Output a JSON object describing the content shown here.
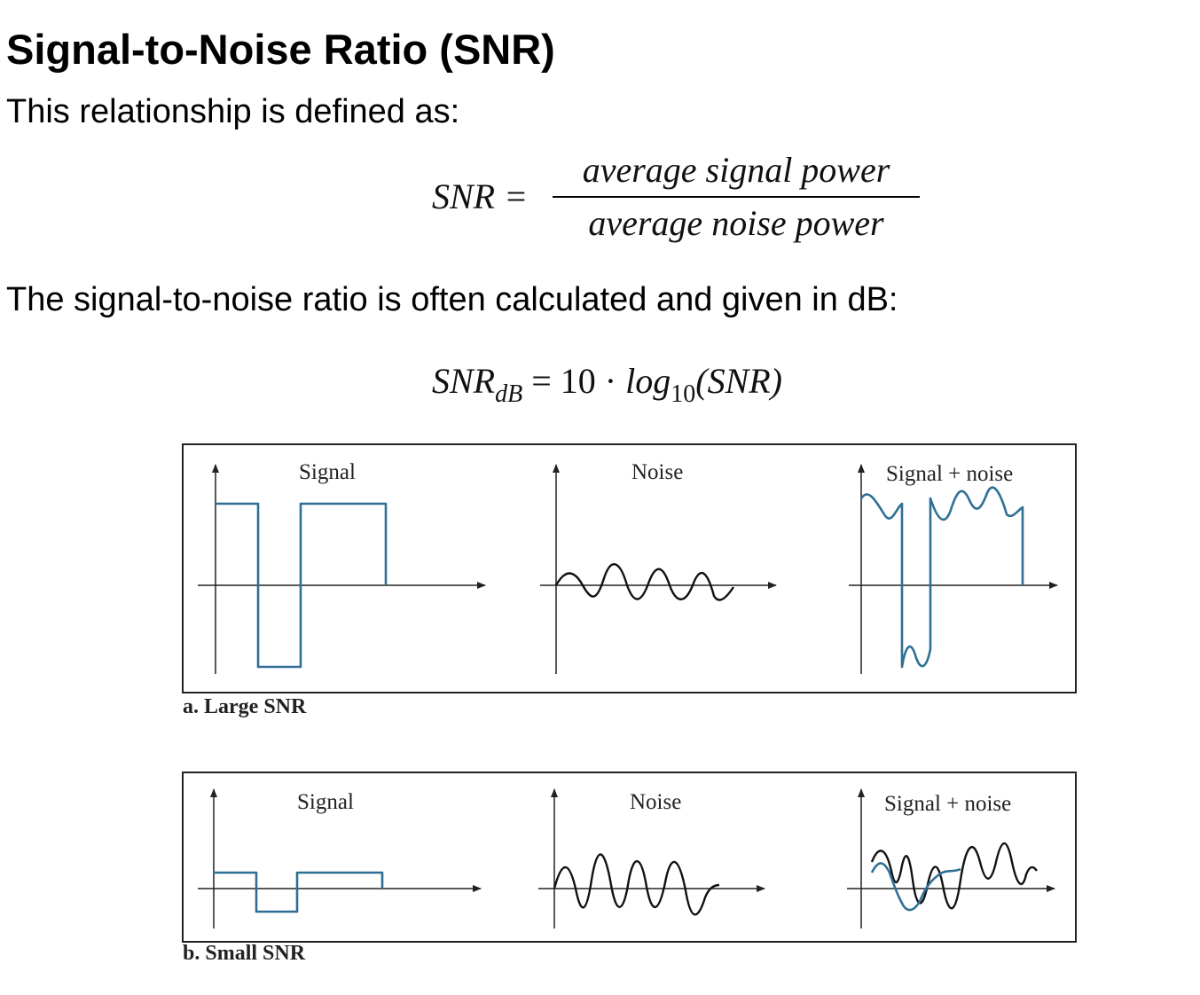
{
  "title": "Signal-to-Noise Ratio (SNR)",
  "intro": "This relationship is defined as:",
  "equation1": {
    "lhs": "SNR =",
    "numerator": "average signal power",
    "denominator": "average noise power"
  },
  "db_intro": "The signal-to-noise ratio is often calculated and given in dB:",
  "equation2": {
    "lhs": "SNR",
    "lhs_sub": "dB",
    "eq": "= 10 · ",
    "fn": "log",
    "fn_sub": "10",
    "arg": "(SNR)"
  },
  "figure": {
    "panel_a": {
      "caption": "a. Large SNR",
      "labels": [
        "Signal",
        "Noise",
        "Signal + noise"
      ]
    },
    "panel_b": {
      "caption": "b. Small  SNR",
      "labels": [
        "Signal",
        "Noise",
        "Signal + noise"
      ]
    }
  },
  "colors": {
    "waveform": "#2f6f95",
    "frame": "#222222"
  }
}
